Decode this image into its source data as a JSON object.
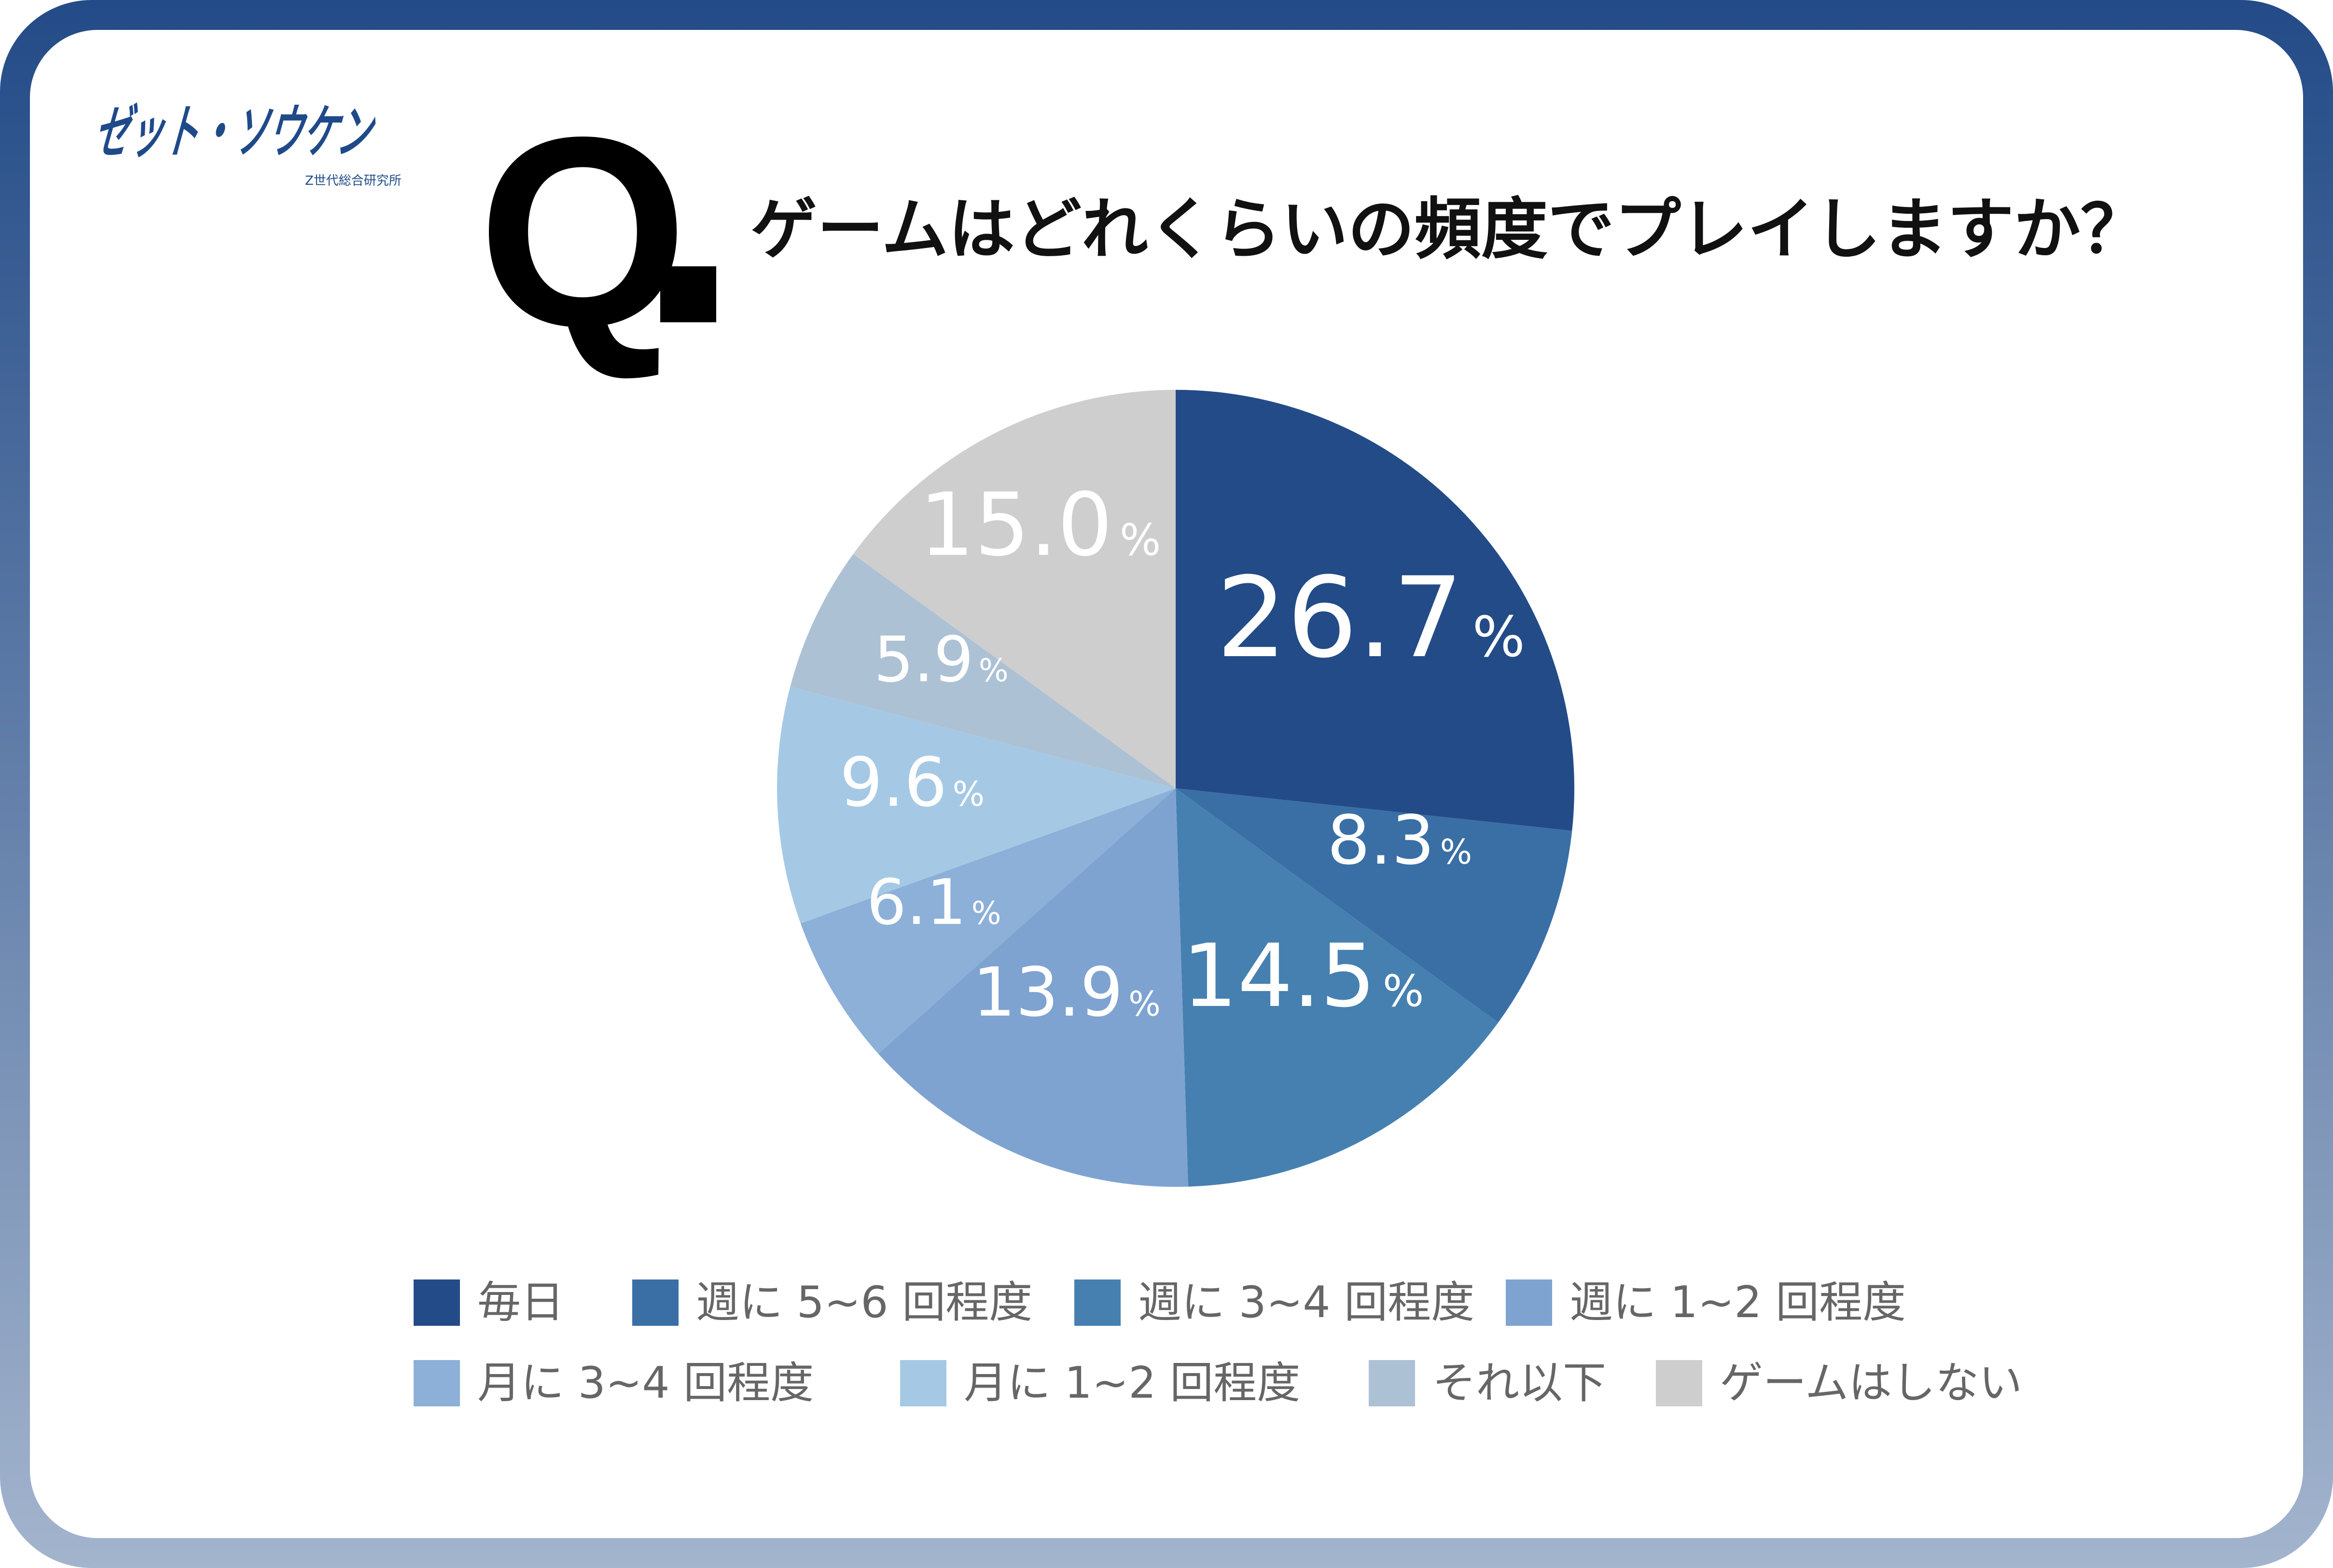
{
  "logo": {
    "name": "ゼット・ソウケン",
    "sub": "Z世代総合研究所"
  },
  "question": {
    "prefix": "Q",
    "title": "ゲームはどれくらいの頻度でプレイしますか？"
  },
  "chart_data": {
    "type": "pie",
    "title": "ゲームはどれくらいの頻度でプレイしますか？",
    "start": "top, clockwise",
    "categories": [
      "毎日",
      "週に 5~6 回程度",
      "週に 3~4 回程度",
      "週に 1~2 回程度",
      "月に 3~4 回程度",
      "月に 1~2 回程度",
      "それ以下",
      "ゲームはしない"
    ],
    "values": [
      26.7,
      8.3,
      14.5,
      13.9,
      6.1,
      9.6,
      5.9,
      15.0
    ],
    "labels": [
      "26.7",
      "8.3",
      "14.5",
      "13.9",
      "6.1",
      "9.6",
      "5.9",
      "15.0"
    ],
    "unit": "%",
    "colors": [
      "#234b87",
      "#3a6fa5",
      "#4680b0",
      "#7ea3d1",
      "#8cb0d8",
      "#a5c9e4",
      "#adc1d5",
      "#cecece"
    ],
    "legend": "bottom"
  }
}
